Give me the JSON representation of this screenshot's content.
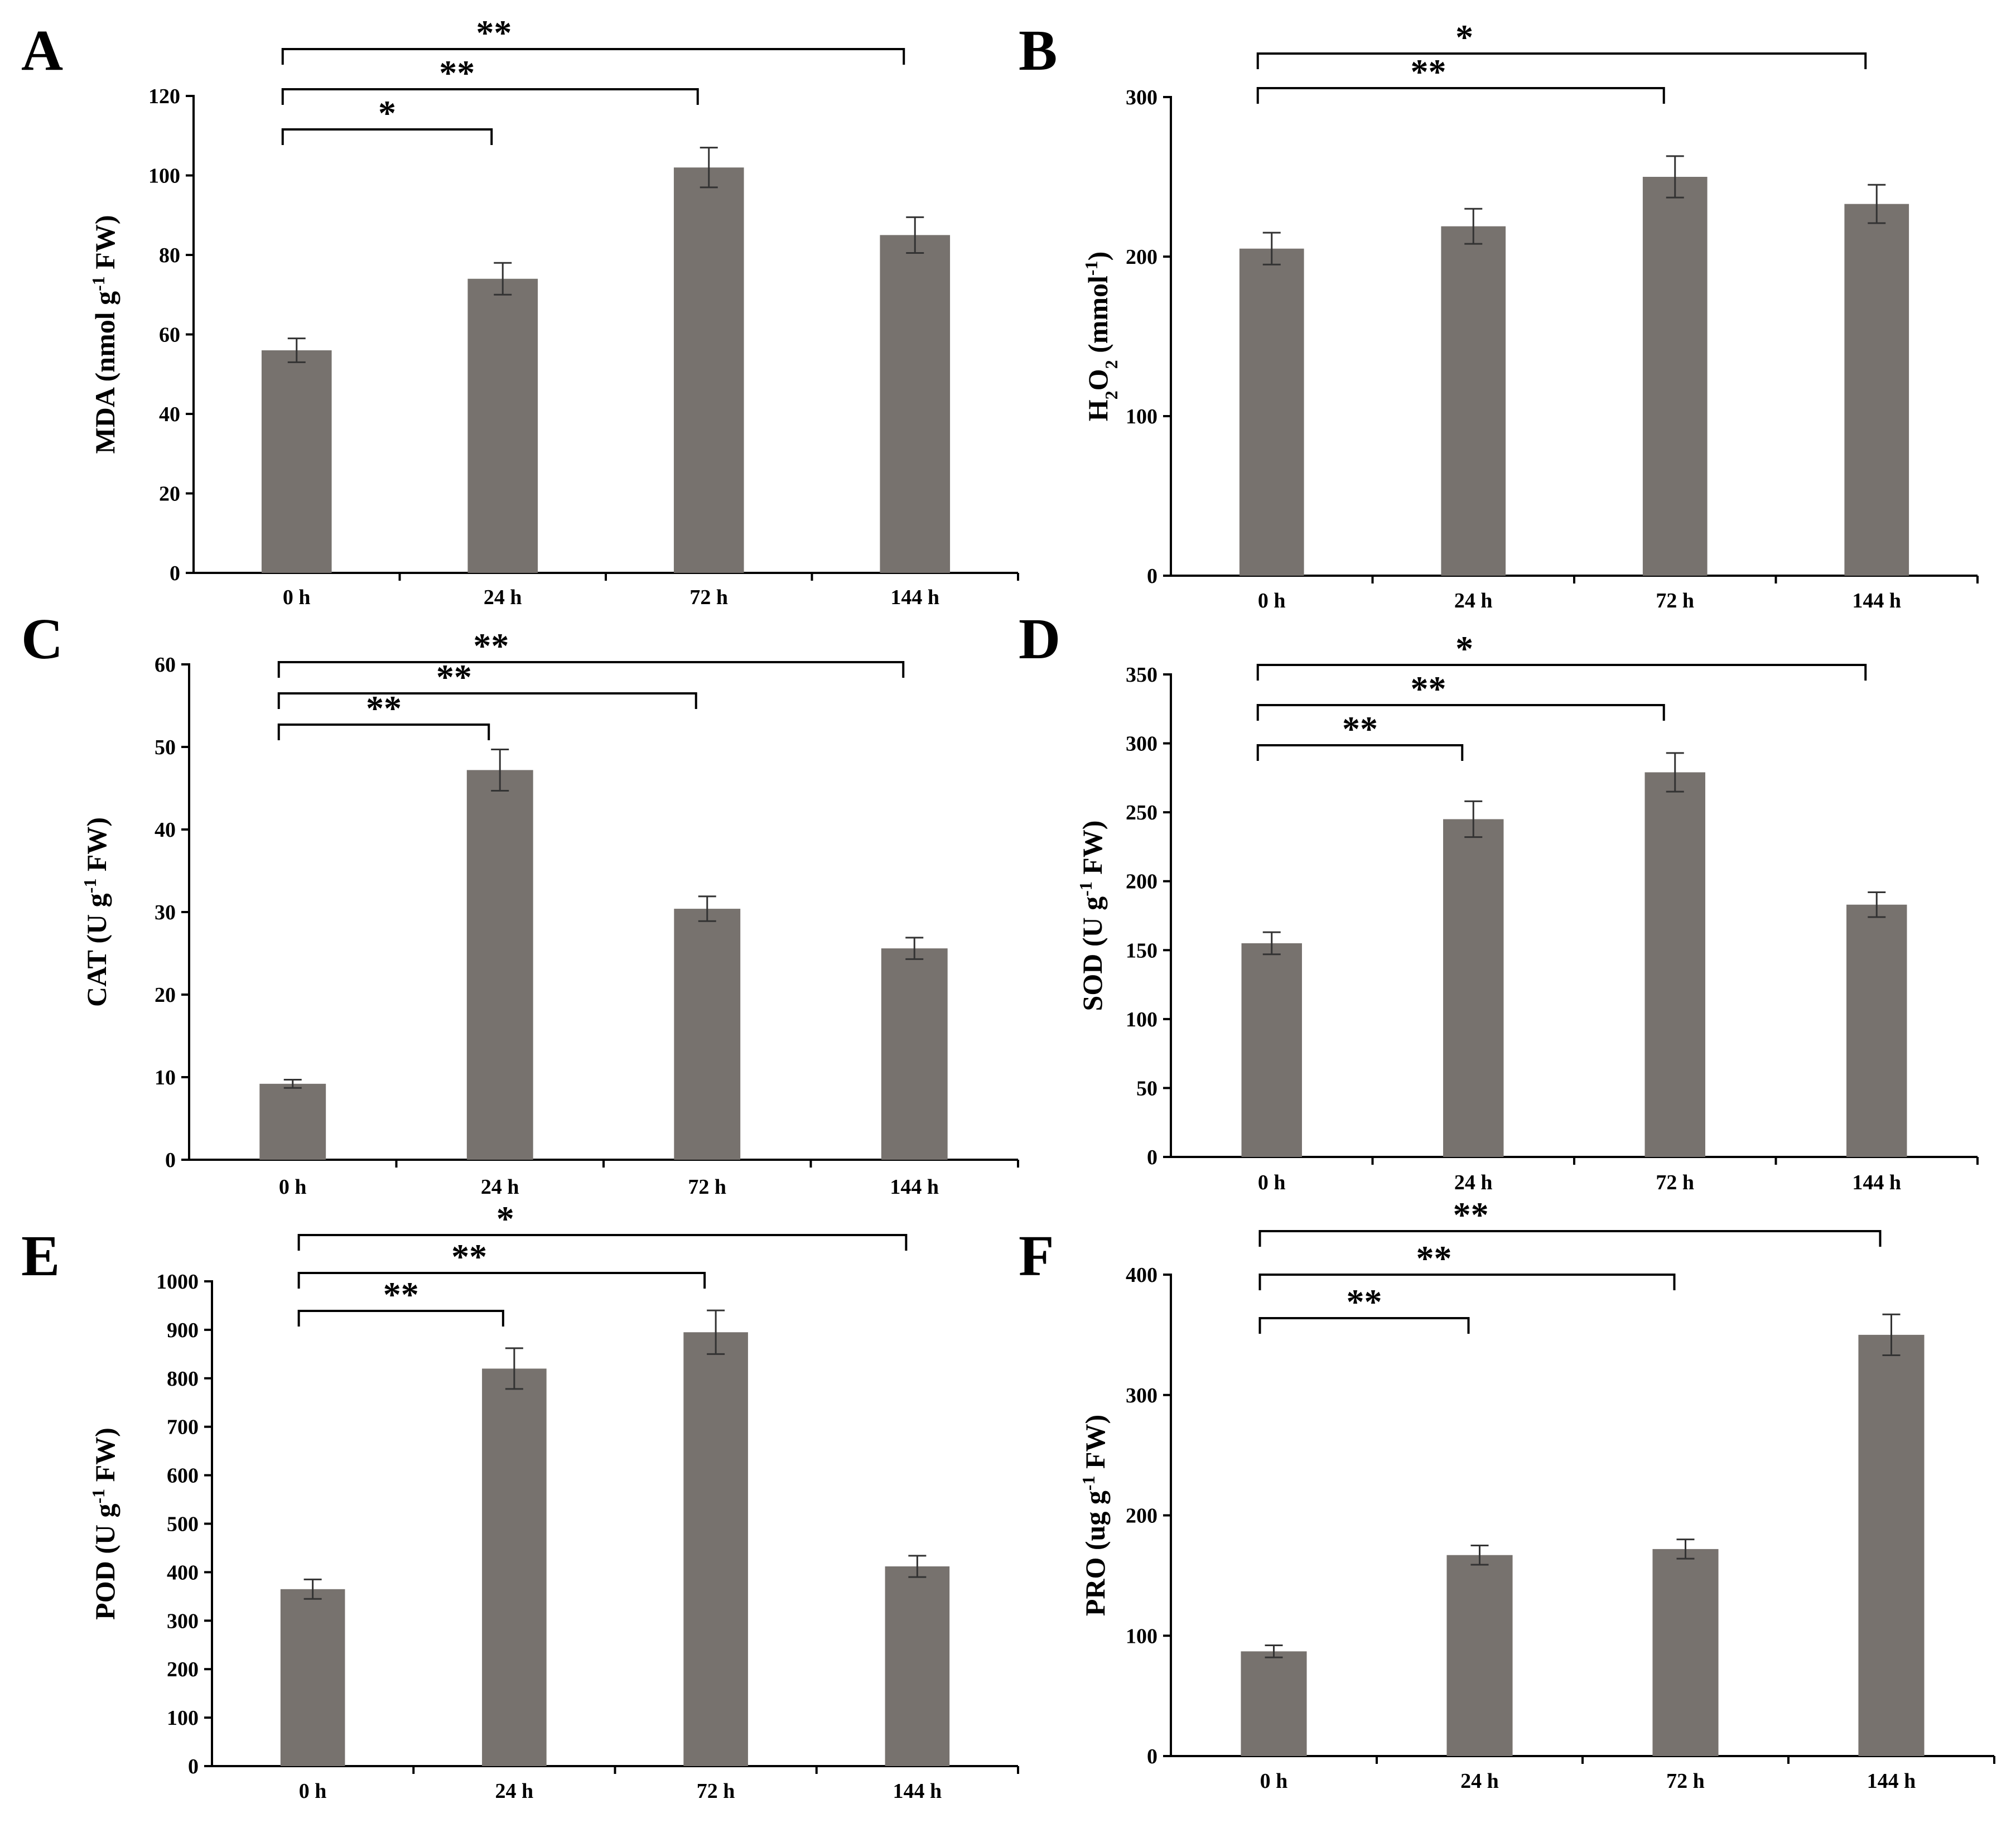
{
  "figure": {
    "bar_color": "#77726e",
    "axis_color": "#000000"
  },
  "chart_data": [
    {
      "panel": "A",
      "type": "bar",
      "categories": [
        "0 h",
        "24 h",
        "72 h",
        "144 h"
      ],
      "values": [
        56,
        74,
        102,
        85
      ],
      "errors": [
        3,
        4,
        5,
        4.5
      ],
      "ylabel": "MDA (nmol g<sup>-1</sup> FW)",
      "ylabel_parts": [
        "MDA (nmol g",
        "-1",
        " FW)"
      ],
      "ylim": [
        0,
        120
      ],
      "yticks": [
        0,
        20,
        40,
        60,
        80,
        100,
        120
      ],
      "comparisons": [
        {
          "from": "0 h",
          "to": "24 h",
          "label": "*"
        },
        {
          "from": "0 h",
          "to": "72 h",
          "label": "**"
        },
        {
          "from": "0 h",
          "to": "144 h",
          "label": "**"
        }
      ]
    },
    {
      "panel": "B",
      "type": "bar",
      "categories": [
        "0 h",
        "24 h",
        "72 h",
        "144 h"
      ],
      "values": [
        205,
        219,
        250,
        233
      ],
      "errors": [
        10,
        11,
        13,
        12
      ],
      "ylabel_parts": [
        "H",
        "2",
        "O",
        "2",
        " (mmol",
        "-1",
        ")"
      ],
      "ylim": [
        0,
        300
      ],
      "yticks": [
        0,
        100,
        200,
        300
      ],
      "comparisons": [
        {
          "from": "0 h",
          "to": "72 h",
          "label": "**"
        },
        {
          "from": "0 h",
          "to": "144 h",
          "label": "*"
        }
      ]
    },
    {
      "panel": "C",
      "type": "bar",
      "categories": [
        "0 h",
        "24 h",
        "72 h",
        "144 h"
      ],
      "values": [
        9.2,
        47.2,
        30.4,
        25.6
      ],
      "errors": [
        0.5,
        2.5,
        1.5,
        1.3
      ],
      "ylabel_parts": [
        "CAT (U g",
        "-1",
        " FW)"
      ],
      "ylim": [
        0,
        60
      ],
      "yticks": [
        0,
        10,
        20,
        30,
        40,
        50,
        60
      ],
      "comparisons": [
        {
          "from": "0 h",
          "to": "24 h",
          "label": "**"
        },
        {
          "from": "0 h",
          "to": "72 h",
          "label": "**"
        },
        {
          "from": "0 h",
          "to": "144 h",
          "label": "**"
        }
      ]
    },
    {
      "panel": "D",
      "type": "bar",
      "categories": [
        "0 h",
        "24 h",
        "72 h",
        "144 h"
      ],
      "values": [
        155,
        245,
        279,
        183
      ],
      "errors": [
        8,
        13,
        14,
        9
      ],
      "ylabel_parts": [
        "SOD (U g",
        "-1",
        " FW)"
      ],
      "ylim": [
        0,
        350
      ],
      "yticks": [
        0,
        50,
        100,
        150,
        200,
        250,
        300,
        350
      ],
      "comparisons": [
        {
          "from": "0 h",
          "to": "24 h",
          "label": "**"
        },
        {
          "from": "0 h",
          "to": "72 h",
          "label": "**"
        },
        {
          "from": "0 h",
          "to": "144 h",
          "label": "*"
        }
      ]
    },
    {
      "panel": "E",
      "type": "bar",
      "categories": [
        "0 h",
        "24 h",
        "72 h",
        "144 h"
      ],
      "values": [
        365,
        820,
        895,
        412
      ],
      "errors": [
        20,
        42,
        45,
        22
      ],
      "ylabel_parts": [
        "POD (U g",
        "-1",
        " FW)"
      ],
      "ylim": [
        0,
        1000
      ],
      "yticks": [
        0,
        100,
        200,
        300,
        400,
        500,
        600,
        700,
        800,
        900,
        1000
      ],
      "comparisons": [
        {
          "from": "0 h",
          "to": "24 h",
          "label": "**"
        },
        {
          "from": "0 h",
          "to": "72 h",
          "label": "**"
        },
        {
          "from": "0 h",
          "to": "144 h",
          "label": "*"
        }
      ]
    },
    {
      "panel": "F",
      "type": "bar",
      "categories": [
        "0 h",
        "24 h",
        "72 h",
        "144 h"
      ],
      "values": [
        87,
        167,
        172,
        350
      ],
      "errors": [
        5,
        8,
        8,
        17
      ],
      "ylabel_parts": [
        "PRO (ug g",
        "-1",
        " FW)"
      ],
      "ylim": [
        0,
        400
      ],
      "yticks": [
        0,
        100,
        200,
        300,
        400
      ],
      "comparisons": [
        {
          "from": "0 h",
          "to": "24 h",
          "label": "**"
        },
        {
          "from": "0 h",
          "to": "72 h",
          "label": "**"
        },
        {
          "from": "0 h",
          "to": "144 h",
          "label": "**"
        }
      ]
    }
  ]
}
